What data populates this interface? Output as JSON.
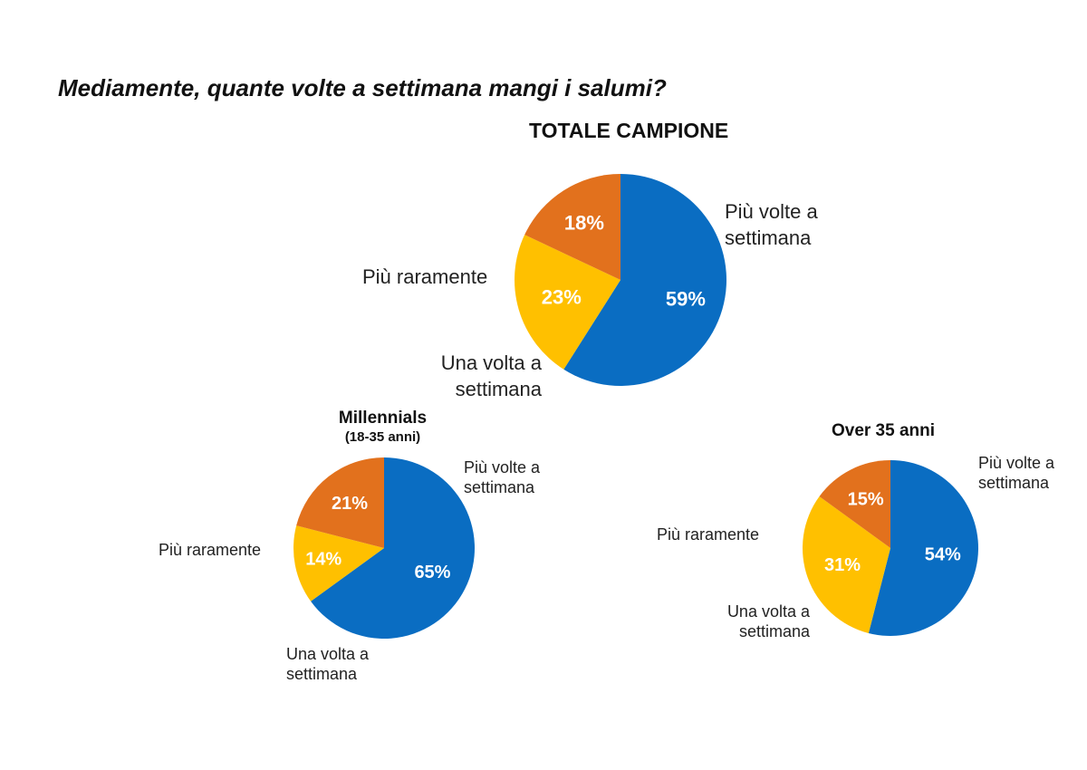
{
  "title": "Mediamente, quante volte a settimana mangi i salumi?",
  "colors": {
    "piu_volte": "#0A6DC2",
    "una_volta": "#FFC000",
    "piu_raramente": "#E2711D"
  },
  "chart_data": [
    {
      "type": "pie",
      "title": "TOTALE CAMPIONE",
      "subtitle": "",
      "slices": [
        {
          "label": "Più volte a settimana",
          "value": 59,
          "value_label": "59%"
        },
        {
          "label": "Una volta a settimana",
          "value": 23,
          "value_label": "23%"
        },
        {
          "label": "Più raramente",
          "value": 18,
          "value_label": "18%"
        }
      ]
    },
    {
      "type": "pie",
      "title": "Millennials",
      "subtitle": "(18-35 anni)",
      "slices": [
        {
          "label": "Più volte a settimana",
          "value": 65,
          "value_label": "65%"
        },
        {
          "label": "Una volta a settimana",
          "value": 14,
          "value_label": "14%"
        },
        {
          "label": "Più raramente",
          "value": 21,
          "value_label": "21%"
        }
      ]
    },
    {
      "type": "pie",
      "title": "Over 35 anni",
      "subtitle": "",
      "slices": [
        {
          "label": "Più volte a settimana",
          "value": 54,
          "value_label": "54%"
        },
        {
          "label": "Una volta a settimana",
          "value": 31,
          "value_label": "31%"
        },
        {
          "label": "Più raramente",
          "value": 15,
          "value_label": "15%"
        }
      ]
    }
  ],
  "labels": {
    "piu_volte_line1": "Più volte a",
    "piu_volte_line2": "settimana",
    "una_volta_line1": "Una volta a",
    "una_volta_line2": "settimana",
    "piu_raramente": "Più raramente"
  }
}
